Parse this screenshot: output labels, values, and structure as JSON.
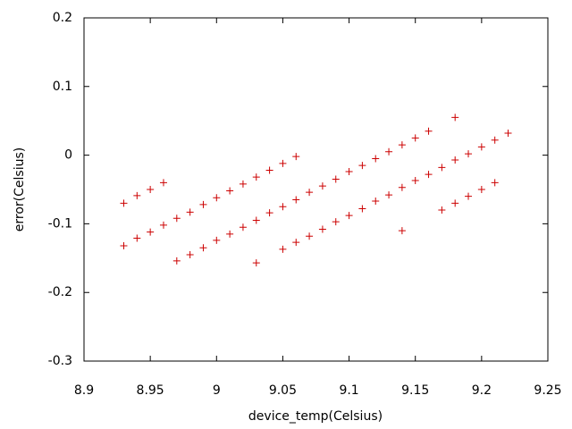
{
  "chart_data": {
    "type": "scatter",
    "x_label": "device_temp(Celsius)",
    "y_label": "error(Celsius)",
    "xlim": [
      8.9,
      9.25
    ],
    "xticks": [
      8.9,
      8.95,
      9,
      9.05,
      9.1,
      9.15,
      9.2,
      9.25
    ],
    "ylim": [
      -0.3,
      0.2
    ],
    "yticks": [
      -0.3,
      -0.2,
      -0.1,
      0,
      0.1,
      0.2
    ],
    "grid": false,
    "series": [
      {
        "color": "#cc0000",
        "x": [
          8.93,
          8.94,
          8.95,
          8.96,
          8.93,
          8.94,
          8.95,
          8.96,
          8.97,
          8.98,
          8.99,
          9.0,
          9.01,
          9.02,
          9.03,
          9.04,
          9.05,
          9.06,
          8.97,
          8.98,
          8.99,
          9.0,
          9.01,
          9.02,
          9.03,
          9.04,
          9.05,
          9.06,
          9.07,
          9.08,
          9.09,
          9.1,
          9.11,
          9.12,
          9.13,
          9.14,
          9.15,
          9.16,
          9.03,
          9.05,
          9.06,
          9.07,
          9.08,
          9.09,
          9.1,
          9.11,
          9.12,
          9.13,
          9.14,
          9.15,
          9.16,
          9.17,
          9.18,
          9.19,
          9.2,
          9.21,
          9.22,
          9.14,
          9.18,
          9.17,
          9.18,
          9.19,
          9.2,
          9.21
        ],
        "values": [
          -0.07,
          -0.059,
          -0.05,
          -0.04,
          -0.132,
          -0.121,
          -0.112,
          -0.102,
          -0.092,
          -0.083,
          -0.072,
          -0.062,
          -0.052,
          -0.042,
          -0.032,
          -0.022,
          -0.012,
          -0.002,
          -0.154,
          -0.145,
          -0.135,
          -0.124,
          -0.115,
          -0.105,
          -0.095,
          -0.084,
          -0.075,
          -0.065,
          -0.054,
          -0.045,
          -0.035,
          -0.024,
          -0.015,
          -0.005,
          0.005,
          0.015,
          0.025,
          0.035,
          -0.157,
          -0.137,
          -0.127,
          -0.118,
          -0.108,
          -0.097,
          -0.088,
          -0.078,
          -0.067,
          -0.058,
          -0.047,
          -0.037,
          -0.028,
          -0.018,
          -0.007,
          0.002,
          0.012,
          0.022,
          0.032,
          -0.11,
          0.055,
          -0.08,
          -0.07,
          -0.06,
          -0.05,
          -0.04
        ]
      }
    ]
  }
}
